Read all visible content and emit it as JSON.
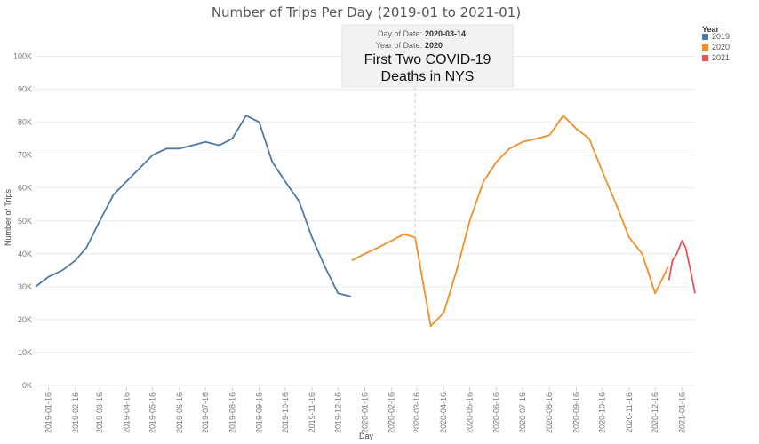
{
  "chart_data": {
    "type": "line",
    "title": "Number of Trips Per Day (2019-01 to 2021-01)",
    "xlabel": "Day",
    "ylabel": "Number of Trips",
    "ylim": [
      0,
      105000
    ],
    "yticks": [
      "0K",
      "10K",
      "20K",
      "30K",
      "40K",
      "50K",
      "60K",
      "70K",
      "80K",
      "90K",
      "100K"
    ],
    "xticks": [
      "2019-01-16",
      "2019-02-16",
      "2019-03-16",
      "2019-04-16",
      "2019-05-16",
      "2019-06-16",
      "2019-07-16",
      "2019-08-16",
      "2019-09-16",
      "2019-10-16",
      "2019-11-16",
      "2019-12-16",
      "2020-01-16",
      "2020-02-16",
      "2020-03-16",
      "2020-04-16",
      "2020-05-16",
      "2020-06-16",
      "2020-07-16",
      "2020-08-16",
      "2020-09-16",
      "2020-10-16",
      "2020-11-16",
      "2020-12-16",
      "2021-01-16"
    ],
    "x_range": [
      "2019-01-01",
      "2021-01-31"
    ],
    "grid": "horizontal",
    "legend": {
      "title": "Year",
      "placement": "right"
    },
    "series": [
      {
        "name": "2019",
        "color": "#4e79a7",
        "x": [
          "2019-01-01",
          "2019-01-16",
          "2019-02-01",
          "2019-02-16",
          "2019-03-01",
          "2019-03-16",
          "2019-04-01",
          "2019-04-16",
          "2019-05-01",
          "2019-05-16",
          "2019-06-01",
          "2019-06-16",
          "2019-07-01",
          "2019-07-16",
          "2019-08-01",
          "2019-08-16",
          "2019-09-01",
          "2019-09-16",
          "2019-10-01",
          "2019-10-16",
          "2019-11-01",
          "2019-11-16",
          "2019-12-01",
          "2019-12-16",
          "2019-12-31"
        ],
        "values": [
          30000,
          33000,
          35000,
          38000,
          42000,
          50000,
          58000,
          62000,
          66000,
          70000,
          72000,
          72000,
          73000,
          74000,
          73000,
          75000,
          82000,
          80000,
          68000,
          62000,
          56000,
          45000,
          36000,
          28000,
          27000
        ]
      },
      {
        "name": "2020",
        "color": "#f28e2b",
        "x": [
          "2020-01-01",
          "2020-01-16",
          "2020-02-01",
          "2020-02-16",
          "2020-03-01",
          "2020-03-14",
          "2020-04-01",
          "2020-04-16",
          "2020-05-01",
          "2020-05-16",
          "2020-06-01",
          "2020-06-16",
          "2020-07-01",
          "2020-07-16",
          "2020-08-01",
          "2020-08-16",
          "2020-09-01",
          "2020-09-16",
          "2020-10-01",
          "2020-10-16",
          "2020-11-01",
          "2020-11-16",
          "2020-12-01",
          "2020-12-16",
          "2020-12-31"
        ],
        "values": [
          38000,
          40000,
          42000,
          44000,
          46000,
          45000,
          18000,
          22000,
          35000,
          50000,
          62000,
          68000,
          72000,
          74000,
          75000,
          76000,
          82000,
          78000,
          75000,
          65000,
          55000,
          45000,
          40000,
          28000,
          36000
        ]
      },
      {
        "name": "2021",
        "color": "#e15759",
        "x": [
          "2021-01-01",
          "2021-01-05",
          "2021-01-10",
          "2021-01-16",
          "2021-01-20",
          "2021-01-25",
          "2021-01-31"
        ],
        "values": [
          32000,
          38000,
          40000,
          44000,
          42000,
          36000,
          28000
        ]
      }
    ],
    "annotation": {
      "date_label": "Day of Date:",
      "date_value": "2020-03-14",
      "year_label": "Year of Date:",
      "year_value": "2020",
      "text_line1": "First Two COVID-19",
      "text_line2": "Deaths in NYS",
      "x": "2020-03-14"
    }
  }
}
